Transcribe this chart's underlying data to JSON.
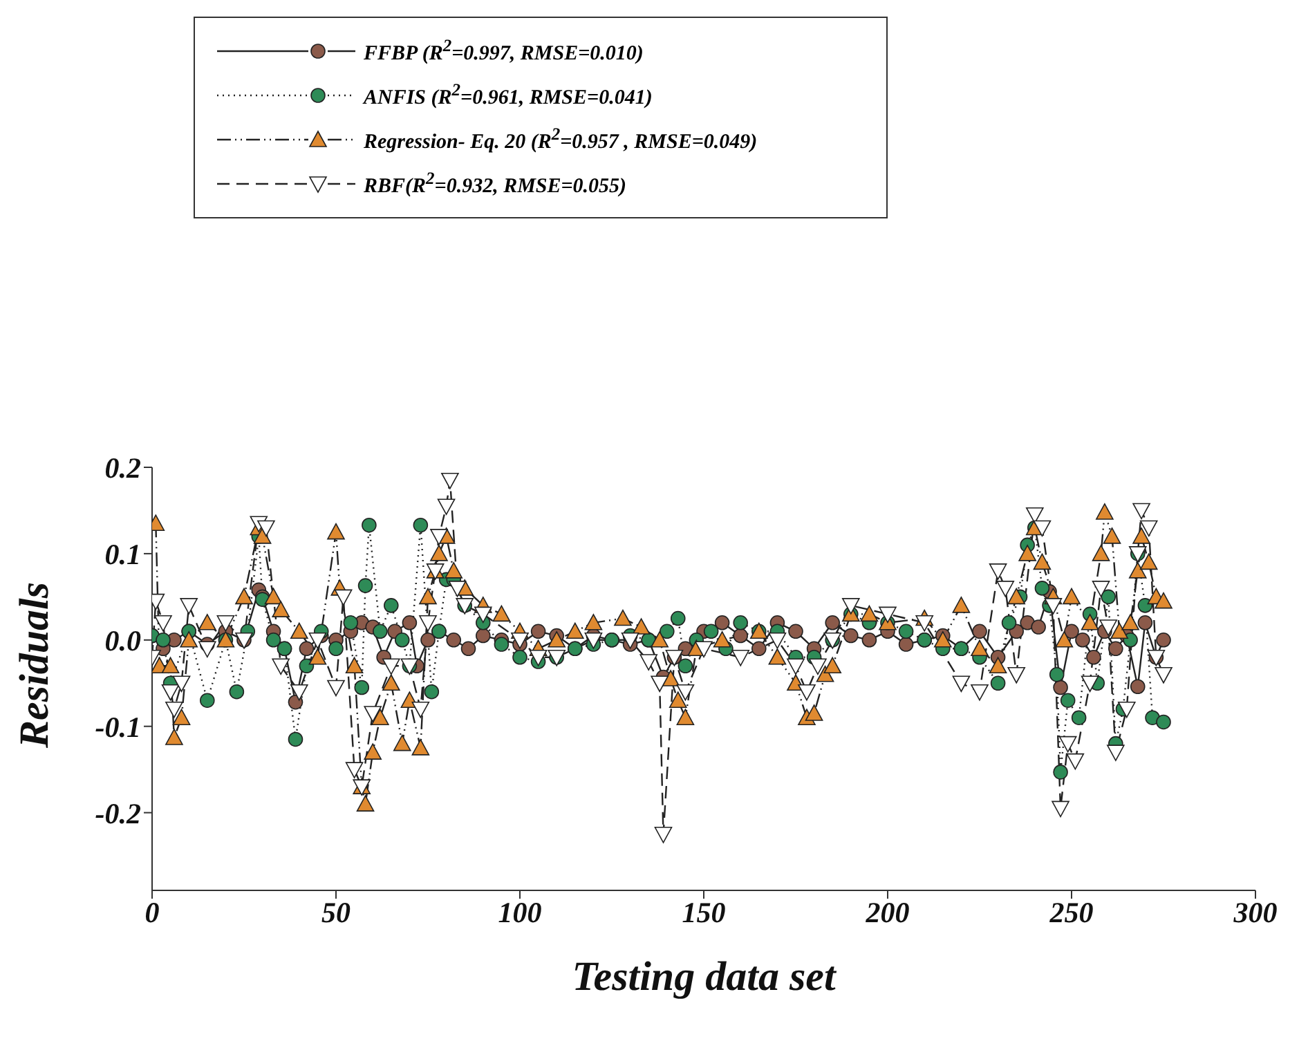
{
  "chart_data": {
    "type": "line",
    "xlabel": "Testing data set",
    "ylabel": "Residuals",
    "xlim": [
      0,
      300
    ],
    "xticks": [
      0,
      50,
      100,
      150,
      200,
      250,
      300
    ],
    "ylim": [
      -0.29,
      0.2
    ],
    "yticks": [
      -0.2,
      -0.1,
      {
        "value": 0,
        "label": "0.0"
      },
      0.1,
      0.2
    ],
    "grid": false,
    "legend": "top left",
    "series": [
      {
        "name": "FFBP (R$^{2}$=0.997, RMSE=0.010)",
        "color": "#8b5a4a",
        "marker": "circle",
        "line_style": "solid",
        "x": [
          0,
          3,
          6,
          10,
          15,
          20,
          25,
          29,
          30,
          33,
          36,
          39,
          42,
          46,
          50,
          54,
          57,
          60,
          63,
          66,
          70,
          72,
          75,
          78,
          82,
          86,
          90,
          95,
          100,
          105,
          110,
          115,
          120,
          125,
          130,
          135,
          139,
          142,
          145,
          150,
          155,
          160,
          165,
          170,
          175,
          180,
          185,
          190,
          195,
          200,
          205,
          210,
          215,
          220,
          225,
          230,
          235,
          238,
          241,
          244,
          247,
          250,
          253,
          256,
          259,
          262,
          265,
          268,
          270,
          273,
          275
        ],
        "values": [
          0.005,
          -0.01,
          0.0,
          0.01,
          -0.005,
          0.01,
          0.0,
          0.058,
          0.05,
          0.01,
          -0.01,
          -0.072,
          -0.01,
          0.005,
          0.0,
          0.01,
          0.02,
          0.015,
          -0.02,
          0.01,
          0.02,
          -0.03,
          0.0,
          0.01,
          0.0,
          -0.01,
          0.005,
          0.0,
          -0.005,
          0.01,
          0.005,
          -0.01,
          0.005,
          0.0,
          -0.005,
          0.0,
          -0.043,
          -0.02,
          -0.01,
          0.01,
          0.02,
          0.005,
          -0.01,
          0.02,
          0.01,
          -0.01,
          0.02,
          0.005,
          0.0,
          0.01,
          -0.005,
          0.0,
          0.005,
          -0.01,
          0.01,
          -0.02,
          0.01,
          0.02,
          0.015,
          0.056,
          -0.055,
          0.01,
          0.0,
          -0.02,
          0.01,
          -0.01,
          0.005,
          -0.054,
          0.02,
          -0.02,
          0.0
        ]
      },
      {
        "name": "ANFIS (R$^{2}$=0.961, RMSE=0.041)",
        "color": "#2e8b57",
        "marker": "circle",
        "line_style": "dotted",
        "x": [
          0,
          3,
          5,
          10,
          15,
          20,
          23,
          26,
          29,
          30,
          33,
          36,
          39,
          42,
          46,
          50,
          54,
          57,
          58,
          59,
          62,
          65,
          68,
          70,
          73,
          76,
          78,
          80,
          82,
          85,
          90,
          95,
          100,
          105,
          110,
          115,
          120,
          125,
          130,
          135,
          140,
          143,
          145,
          148,
          152,
          156,
          160,
          165,
          170,
          175,
          180,
          185,
          190,
          195,
          200,
          205,
          210,
          215,
          220,
          225,
          230,
          233,
          236,
          238,
          240,
          242,
          244,
          246,
          247,
          249,
          252,
          255,
          257,
          260,
          262,
          264,
          266,
          268,
          270,
          272,
          275
        ],
        "values": [
          0.005,
          0.0,
          -0.05,
          0.01,
          -0.07,
          0.0,
          -0.06,
          0.01,
          0.12,
          0.047,
          0.0,
          -0.01,
          -0.115,
          -0.03,
          0.01,
          -0.01,
          0.02,
          -0.055,
          0.063,
          0.133,
          0.01,
          0.04,
          0.0,
          -0.03,
          0.133,
          -0.06,
          0.01,
          0.07,
          0.07,
          0.04,
          0.02,
          -0.005,
          -0.02,
          -0.025,
          -0.02,
          -0.01,
          -0.005,
          0.0,
          0.005,
          0.0,
          0.01,
          0.025,
          -0.03,
          0.0,
          0.01,
          -0.01,
          0.02,
          0.01,
          0.01,
          -0.02,
          -0.02,
          0.0,
          0.03,
          0.02,
          0.02,
          0.01,
          0.0,
          -0.01,
          -0.01,
          -0.02,
          -0.05,
          0.02,
          0.05,
          0.11,
          0.13,
          0.06,
          0.04,
          -0.04,
          -0.153,
          -0.07,
          -0.09,
          0.03,
          -0.05,
          0.05,
          -0.12,
          -0.08,
          0.0,
          0.1,
          0.04,
          -0.09,
          -0.095
        ]
      },
      {
        "name": "Regression- Eq. 20  (R$^{2}$=0.957 , RMSE=0.049)",
        "color": "#e08a30",
        "marker": "triangle",
        "line_style": "dashdot",
        "x": [
          1,
          2,
          5,
          6,
          8,
          10,
          15,
          20,
          25,
          29,
          30,
          33,
          35,
          40,
          45,
          50,
          51,
          55,
          57,
          58,
          60,
          62,
          65,
          68,
          70,
          73,
          75,
          77,
          78,
          80,
          82,
          85,
          90,
          95,
          100,
          105,
          110,
          115,
          120,
          128,
          133,
          138,
          141,
          143,
          145,
          148,
          155,
          165,
          170,
          175,
          178,
          180,
          183,
          185,
          190,
          195,
          200,
          210,
          215,
          220,
          225,
          230,
          235,
          238,
          240,
          242,
          245,
          248,
          250,
          255,
          258,
          259,
          261,
          263,
          266,
          268,
          269,
          271,
          273,
          275
        ],
        "values": [
          0.135,
          -0.03,
          -0.03,
          -0.113,
          -0.09,
          0.0,
          0.02,
          0.0,
          0.05,
          0.13,
          0.12,
          0.05,
          0.035,
          0.01,
          -0.02,
          0.125,
          0.06,
          -0.03,
          -0.17,
          -0.19,
          -0.13,
          -0.09,
          -0.05,
          -0.12,
          -0.07,
          -0.125,
          0.05,
          0.08,
          0.1,
          0.12,
          0.08,
          0.06,
          0.04,
          0.03,
          0.01,
          -0.01,
          0.0,
          0.01,
          0.02,
          0.025,
          0.015,
          0.0,
          -0.045,
          -0.07,
          -0.09,
          -0.01,
          0.0,
          0.01,
          -0.02,
          -0.05,
          -0.09,
          -0.085,
          -0.04,
          -0.03,
          0.03,
          0.03,
          0.02,
          0.025,
          0.0,
          0.04,
          -0.01,
          -0.03,
          0.05,
          0.1,
          0.13,
          0.09,
          0.05,
          0.0,
          0.05,
          0.02,
          0.1,
          0.148,
          0.12,
          0.01,
          0.02,
          0.08,
          0.12,
          0.09,
          0.05,
          0.045
        ]
      },
      {
        "name": "RBF(R$^{2}$=0.932, RMSE=0.055)",
        "color": "#ffffff",
        "marker": "triangle-down",
        "line_style": "dashed",
        "x": [
          0,
          1,
          3,
          5,
          6,
          8,
          10,
          15,
          20,
          25,
          29,
          31,
          35,
          40,
          45,
          50,
          52,
          55,
          57,
          60,
          65,
          70,
          73,
          75,
          77,
          78,
          80,
          81,
          83,
          85,
          90,
          100,
          105,
          110,
          120,
          130,
          135,
          138,
          139,
          142,
          145,
          150,
          160,
          170,
          175,
          178,
          181,
          185,
          190,
          200,
          210,
          220,
          225,
          230,
          232,
          235,
          240,
          242,
          245,
          247,
          249,
          251,
          255,
          258,
          260,
          262,
          265,
          268,
          269,
          271,
          273,
          275
        ],
        "values": [
          -0.02,
          0.045,
          0.02,
          -0.06,
          -0.08,
          -0.05,
          0.04,
          -0.01,
          0.02,
          0.0,
          0.135,
          0.13,
          -0.03,
          -0.06,
          0.0,
          -0.055,
          0.05,
          -0.15,
          -0.17,
          -0.085,
          -0.03,
          -0.03,
          -0.08,
          0.02,
          0.08,
          0.12,
          0.155,
          0.185,
          0.06,
          0.04,
          0.03,
          0.0,
          -0.02,
          -0.02,
          0.0,
          0.0,
          -0.025,
          -0.05,
          -0.225,
          -0.02,
          -0.06,
          -0.01,
          -0.02,
          0.0,
          -0.03,
          -0.06,
          -0.03,
          0.0,
          0.04,
          0.03,
          0.02,
          -0.05,
          -0.06,
          0.08,
          0.06,
          -0.04,
          0.145,
          0.13,
          0.04,
          -0.195,
          -0.12,
          -0.14,
          -0.05,
          0.06,
          0.015,
          -0.13,
          -0.08,
          0.1,
          0.15,
          0.13,
          -0.02,
          -0.04
        ]
      }
    ]
  }
}
